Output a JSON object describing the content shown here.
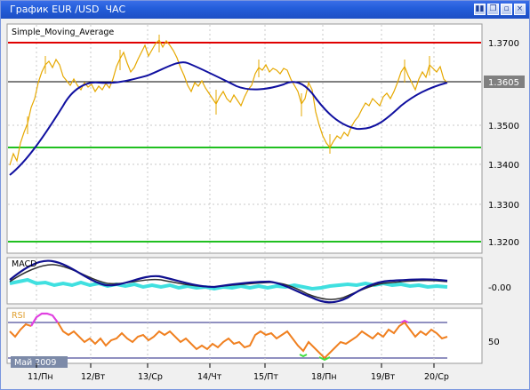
{
  "window": {
    "title": "График EUR /USD  ЧАС",
    "buttons": [
      "pin",
      "restore",
      "minimize",
      "close"
    ]
  },
  "main_panel": {
    "indicator_label": "Simple_Moving_Average",
    "price_ticks": [
      "1.3700",
      "1.3605",
      "1.3500",
      "1.3400",
      "1.3300",
      "1.3200"
    ],
    "current_price": "1.3605",
    "colors": {
      "price_bars": "#e6a800",
      "sma": "#1010a0",
      "resistance": "#e00000",
      "support": "#20c020",
      "current_line": "#000000"
    }
  },
  "macd_panel": {
    "label": "MACD",
    "tick": "-0.00",
    "colors": {
      "histogram": "#40e0e0",
      "line": "#101090",
      "signal": "#303030"
    }
  },
  "rsi_panel": {
    "label": "RSI",
    "tick": "50",
    "month_badge": "Май 2009",
    "colors": {
      "line": "#f08020",
      "overbought": "#e040e0",
      "oversold": "#40e040"
    }
  },
  "time_axis": {
    "labels": [
      "11/Пн",
      "12/Вт",
      "13/Ср",
      "14/Чт",
      "15/Пт",
      "18/Пн",
      "19/Вт",
      "20/Ср"
    ]
  }
}
